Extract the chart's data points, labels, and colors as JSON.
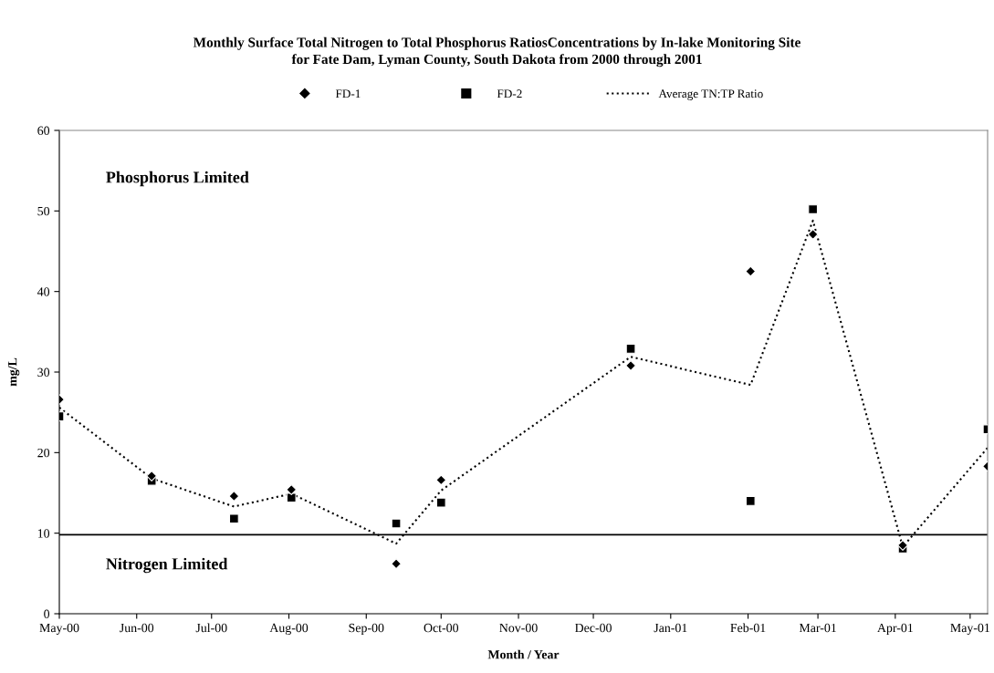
{
  "chart_data": {
    "type": "scatter",
    "title": "Monthly Surface Total Nitrogen to Total Phosphorus RatiosConcentrations by In-lake Monitoring Site\nfor Fate Dam, Lyman County, South Dakota from 2000 through 2001",
    "xlabel": "Month / Year",
    "ylabel": "mg/L",
    "x": [
      "2000-05-01",
      "2000-06-07",
      "2000-07-10",
      "2000-08-02",
      "2000-09-13",
      "2000-10-01",
      "2000-12-16",
      "2001-02-02",
      "2001-02-27",
      "2001-04-04",
      "2001-05-08"
    ],
    "series": [
      {
        "name": "FD-1",
        "marker": "diamond",
        "color": "#000000",
        "values": [
          26.6,
          17.1,
          14.6,
          15.4,
          6.2,
          16.6,
          30.8,
          42.5,
          47.1,
          8.5,
          18.3
        ]
      },
      {
        "name": "FD-2",
        "marker": "square",
        "color": "#000000",
        "values": [
          24.5,
          16.5,
          11.8,
          14.4,
          11.2,
          13.8,
          32.9,
          14.0,
          50.2,
          8.1,
          22.9
        ]
      },
      {
        "name": "Average TN:TP Ratio",
        "type": "line",
        "marker": "none",
        "line_style": "dotted",
        "color": "#000000",
        "values": [
          25.6,
          16.8,
          13.3,
          14.9,
          8.7,
          15.3,
          31.9,
          28.4,
          48.8,
          8.3,
          20.6
        ]
      }
    ],
    "xlim": [
      "2000-05-01",
      "2001-05-08"
    ],
    "xticks": [
      {
        "value": "2000-05-01",
        "label": "May-00"
      },
      {
        "value": "2000-06-01",
        "label": "Jun-00"
      },
      {
        "value": "2000-07-01",
        "label": "Jul-00"
      },
      {
        "value": "2000-08-01",
        "label": "Aug-00"
      },
      {
        "value": "2000-09-01",
        "label": "Sep-00"
      },
      {
        "value": "2000-10-01",
        "label": "Oct-00"
      },
      {
        "value": "2000-11-01",
        "label": "Nov-00"
      },
      {
        "value": "2000-12-01",
        "label": "Dec-00"
      },
      {
        "value": "2001-01-01",
        "label": "Jan-01"
      },
      {
        "value": "2001-02-01",
        "label": "Feb-01"
      },
      {
        "value": "2001-03-01",
        "label": "Mar-01"
      },
      {
        "value": "2001-04-01",
        "label": "Apr-01"
      },
      {
        "value": "2001-05-01",
        "label": "May-01"
      }
    ],
    "ylim": [
      0,
      60
    ],
    "yticks": [
      0,
      10,
      20,
      30,
      40,
      50,
      60
    ],
    "ref_lines": [
      {
        "axis": "y",
        "value": 9.8,
        "color": "#000000"
      }
    ],
    "annotations": [
      "Phosphorus Limited",
      "Nitrogen Limited"
    ],
    "grid": false,
    "legend": "top"
  }
}
